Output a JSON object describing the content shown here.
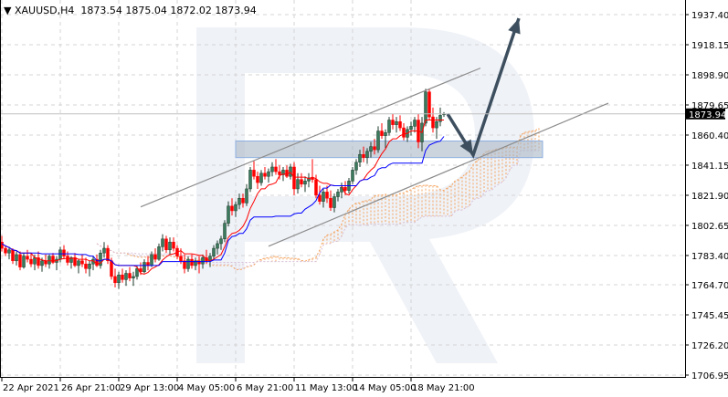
{
  "header": {
    "symbol": "XAUUSD,H4",
    "ohlc": "1873.54 1875.04 1872.02 1873.94",
    "menu_icon": "triangle-down-icon"
  },
  "colors": {
    "bull": "#3b7a5c",
    "bear": "#ff0000",
    "tenkan": "#ff0000",
    "kijun": "#0000ff",
    "cloud_up": "#f4a460",
    "cloud_down": "#d8bfd8",
    "channel": "#8c8c8c",
    "zone": "#a9b6c4",
    "arrow": "#3d4f5f",
    "watermark": "#e9eef4"
  },
  "chart_data": {
    "type": "candlestick",
    "symbol": "XAUUSD",
    "timeframe": "H4",
    "ylim": [
      1706.95,
      1937.4
    ],
    "y_ticks": [
      "1937.40",
      "1918.15",
      "1898.90",
      "1879.65",
      "1860.40",
      "1841.15",
      "1821.90",
      "1802.65",
      "1783.40",
      "1764.70",
      "1745.45",
      "1726.20",
      "1706.95"
    ],
    "current_price": "1873.94",
    "grid": true,
    "x_labels": [
      {
        "bar": 0,
        "label": "22 Apr 2021"
      },
      {
        "bar": 16,
        "label": "26 Apr 21:00"
      },
      {
        "bar": 32,
        "label": "29 Apr 13:00"
      },
      {
        "bar": 48,
        "label": "4 May 05:00"
      },
      {
        "bar": 64,
        "label": "6 May 21:00"
      },
      {
        "bar": 80,
        "label": "11 May 13:00"
      },
      {
        "bar": 96,
        "label": "14 May 05:00"
      },
      {
        "bar": 112,
        "label": "18 May 21:00"
      }
    ],
    "indicators": [
      "Ichimoku Kinko Hyo (9,26,52)"
    ],
    "ohlc": [
      [
        1792,
        1796,
        1786,
        1788
      ],
      [
        1788,
        1790,
        1783,
        1785
      ],
      [
        1785,
        1789,
        1781,
        1787
      ],
      [
        1787,
        1788,
        1778,
        1780
      ],
      [
        1780,
        1786,
        1777,
        1784
      ],
      [
        1784,
        1786,
        1774,
        1776
      ],
      [
        1776,
        1785,
        1775,
        1783
      ],
      [
        1783,
        1787,
        1779,
        1781
      ],
      [
        1781,
        1785,
        1776,
        1778
      ],
      [
        1778,
        1784,
        1774,
        1782
      ],
      [
        1782,
        1786,
        1775,
        1777
      ],
      [
        1777,
        1782,
        1773,
        1780
      ],
      [
        1780,
        1784,
        1776,
        1778
      ],
      [
        1778,
        1784,
        1775,
        1783
      ],
      [
        1783,
        1785,
        1778,
        1779
      ],
      [
        1779,
        1783,
        1774,
        1781
      ],
      [
        1781,
        1789,
        1779,
        1787
      ],
      [
        1787,
        1790,
        1781,
        1783
      ],
      [
        1783,
        1786,
        1777,
        1779
      ],
      [
        1779,
        1783,
        1775,
        1782
      ],
      [
        1782,
        1785,
        1776,
        1777
      ],
      [
        1777,
        1781,
        1772,
        1780
      ],
      [
        1780,
        1784,
        1776,
        1778
      ],
      [
        1778,
        1782,
        1772,
        1775
      ],
      [
        1775,
        1780,
        1770,
        1778
      ],
      [
        1778,
        1783,
        1774,
        1781
      ],
      [
        1781,
        1784,
        1776,
        1777
      ],
      [
        1777,
        1787,
        1775,
        1785
      ],
      [
        1785,
        1792,
        1782,
        1788
      ],
      [
        1788,
        1790,
        1778,
        1780
      ],
      [
        1780,
        1782,
        1768,
        1770
      ],
      [
        1770,
        1775,
        1763,
        1766
      ],
      [
        1766,
        1773,
        1762,
        1771
      ],
      [
        1771,
        1775,
        1766,
        1768
      ],
      [
        1768,
        1774,
        1764,
        1772
      ],
      [
        1772,
        1776,
        1767,
        1769
      ],
      [
        1769,
        1773,
        1764,
        1770
      ],
      [
        1770,
        1777,
        1768,
        1775
      ],
      [
        1775,
        1779,
        1771,
        1773
      ],
      [
        1773,
        1781,
        1772,
        1779
      ],
      [
        1779,
        1783,
        1774,
        1777
      ],
      [
        1777,
        1786,
        1776,
        1784
      ],
      [
        1784,
        1788,
        1779,
        1781
      ],
      [
        1781,
        1791,
        1780,
        1789
      ],
      [
        1789,
        1797,
        1786,
        1794
      ],
      [
        1794,
        1796,
        1785,
        1787
      ],
      [
        1787,
        1795,
        1784,
        1792
      ],
      [
        1792,
        1795,
        1786,
        1788
      ],
      [
        1788,
        1790,
        1781,
        1783
      ],
      [
        1783,
        1788,
        1778,
        1780
      ],
      [
        1780,
        1784,
        1772,
        1775
      ],
      [
        1775,
        1783,
        1773,
        1781
      ],
      [
        1781,
        1784,
        1775,
        1777
      ],
      [
        1777,
        1782,
        1774,
        1780
      ],
      [
        1780,
        1783,
        1772,
        1778
      ],
      [
        1778,
        1784,
        1775,
        1782
      ],
      [
        1782,
        1787,
        1778,
        1780
      ],
      [
        1780,
        1785,
        1776,
        1783
      ],
      [
        1783,
        1790,
        1781,
        1788
      ],
      [
        1788,
        1793,
        1784,
        1791
      ],
      [
        1791,
        1796,
        1787,
        1794
      ],
      [
        1794,
        1806,
        1792,
        1804
      ],
      [
        1804,
        1818,
        1802,
        1815
      ],
      [
        1815,
        1820,
        1809,
        1812
      ],
      [
        1812,
        1818,
        1808,
        1816
      ],
      [
        1816,
        1823,
        1813,
        1820
      ],
      [
        1820,
        1823,
        1814,
        1817
      ],
      [
        1817,
        1829,
        1815,
        1826
      ],
      [
        1826,
        1840,
        1824,
        1838
      ],
      [
        1838,
        1844,
        1832,
        1834
      ],
      [
        1834,
        1837,
        1826,
        1830
      ],
      [
        1830,
        1838,
        1828,
        1836
      ],
      [
        1836,
        1840,
        1832,
        1834
      ],
      [
        1834,
        1839,
        1830,
        1837
      ],
      [
        1837,
        1843,
        1834,
        1840
      ],
      [
        1840,
        1845,
        1835,
        1837
      ],
      [
        1837,
        1841,
        1832,
        1835
      ],
      [
        1835,
        1840,
        1831,
        1838
      ],
      [
        1838,
        1841,
        1833,
        1834
      ],
      [
        1834,
        1842,
        1832,
        1840
      ],
      [
        1840,
        1843,
        1822,
        1826
      ],
      [
        1826,
        1836,
        1823,
        1832
      ],
      [
        1832,
        1836,
        1827,
        1829
      ],
      [
        1829,
        1834,
        1824,
        1831
      ],
      [
        1831,
        1836,
        1827,
        1833
      ],
      [
        1833,
        1845,
        1830,
        1832
      ],
      [
        1832,
        1835,
        1820,
        1822
      ],
      [
        1822,
        1828,
        1816,
        1818
      ],
      [
        1818,
        1826,
        1814,
        1824
      ],
      [
        1824,
        1828,
        1817,
        1820
      ],
      [
        1820,
        1825,
        1812,
        1814
      ],
      [
        1814,
        1823,
        1811,
        1821
      ],
      [
        1821,
        1826,
        1818,
        1824
      ],
      [
        1824,
        1830,
        1820,
        1827
      ],
      [
        1827,
        1831,
        1822,
        1825
      ],
      [
        1825,
        1833,
        1823,
        1831
      ],
      [
        1831,
        1840,
        1829,
        1838
      ],
      [
        1838,
        1845,
        1835,
        1843
      ],
      [
        1843,
        1851,
        1840,
        1848
      ],
      [
        1848,
        1853,
        1843,
        1846
      ],
      [
        1846,
        1852,
        1842,
        1850
      ],
      [
        1850,
        1856,
        1846,
        1853
      ],
      [
        1853,
        1858,
        1848,
        1851
      ],
      [
        1851,
        1866,
        1849,
        1863
      ],
      [
        1863,
        1868,
        1858,
        1860
      ],
      [
        1860,
        1864,
        1852,
        1862
      ],
      [
        1862,
        1872,
        1860,
        1870
      ],
      [
        1870,
        1874,
        1864,
        1867
      ],
      [
        1867,
        1872,
        1862,
        1869
      ],
      [
        1869,
        1873,
        1863,
        1865
      ],
      [
        1865,
        1868,
        1857,
        1859
      ],
      [
        1859,
        1866,
        1856,
        1864
      ],
      [
        1864,
        1869,
        1860,
        1866
      ],
      [
        1866,
        1872,
        1862,
        1870
      ],
      [
        1870,
        1874,
        1852,
        1856
      ],
      [
        1856,
        1872,
        1850,
        1868
      ],
      [
        1868,
        1890,
        1866,
        1888
      ],
      [
        1888,
        1890,
        1870,
        1872
      ],
      [
        1872,
        1878,
        1862,
        1865
      ],
      [
        1865,
        1872,
        1858,
        1869
      ],
      [
        1869,
        1878,
        1866,
        1873
      ],
      [
        1873.54,
        1875.04,
        1872.02,
        1873.94
      ]
    ],
    "drawings": {
      "channel_upper": [
        [
          38,
          1814.5
        ],
        [
          131,
          1903.2
        ]
      ],
      "channel_lower": [
        [
          73,
          1789.3
        ],
        [
          166,
          1880.8
        ]
      ],
      "support_zone": {
        "bar_from": 64,
        "bar_to": 148,
        "price_low": 1846.0,
        "price_high": 1856.6
      },
      "forecast_arrow": [
        [
          122,
          1873.9
        ],
        [
          129,
          1847.6
        ],
        [
          141.5,
          1935.0
        ]
      ]
    }
  }
}
